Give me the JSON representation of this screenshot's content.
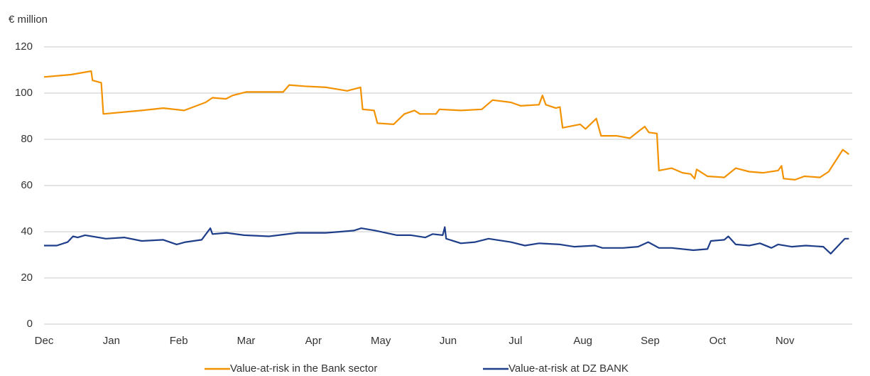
{
  "chart_data": {
    "type": "line",
    "y_label": "€ million",
    "xlim": [
      0,
      12
    ],
    "xticks": [
      {
        "value": 0,
        "label": "Dec"
      },
      {
        "value": 1,
        "label": "Jan"
      },
      {
        "value": 2,
        "label": "Feb"
      },
      {
        "value": 3,
        "label": "Mar"
      },
      {
        "value": 4,
        "label": "Apr"
      },
      {
        "value": 5,
        "label": "May"
      },
      {
        "value": 6,
        "label": "Jun"
      },
      {
        "value": 7,
        "label": "Jul"
      },
      {
        "value": 8,
        "label": "Aug"
      },
      {
        "value": 9,
        "label": "Sep"
      },
      {
        "value": 10,
        "label": "Oct"
      },
      {
        "value": 11,
        "label": "Nov"
      }
    ],
    "ylim": [
      0,
      120
    ],
    "yticks": [
      0,
      20,
      40,
      60,
      80,
      100,
      120
    ],
    "grid": true,
    "legend": "bottom",
    "series": [
      {
        "name": "Value-at-risk in the Bank sector",
        "color": "#f39200",
        "x": [
          0,
          0.4,
          0.7,
          0.72,
          0.85,
          0.88,
          1.45,
          1.77,
          2.08,
          2.4,
          2.5,
          2.7,
          2.8,
          3.0,
          3.55,
          3.64,
          3.87,
          4.19,
          4.5,
          4.7,
          4.73,
          4.9,
          4.95,
          5.19,
          5.35,
          5.5,
          5.58,
          5.82,
          5.87,
          6.19,
          6.5,
          6.66,
          6.93,
          7.08,
          7.35,
          7.4,
          7.45,
          7.6,
          7.66,
          7.7,
          7.96,
          8.04,
          8.2,
          8.27,
          8.5,
          8.7,
          8.85,
          8.92,
          8.98,
          9.1,
          9.13,
          9.32,
          9.48,
          9.6,
          9.66,
          9.69,
          9.85,
          10.1,
          10.27,
          10.47,
          10.68,
          10.9,
          10.95,
          10.98,
          11.15,
          11.29,
          11.52,
          11.65,
          11.86,
          11.95
        ],
        "values": [
          107,
          108,
          109.5,
          105.5,
          104.5,
          91,
          92.5,
          93.5,
          92.5,
          96,
          98,
          97.5,
          99,
          100.5,
          100.5,
          103.5,
          103,
          102.5,
          101,
          102.5,
          93,
          92.5,
          87,
          86.5,
          91,
          92.5,
          91,
          91,
          93,
          92.5,
          93,
          97,
          96,
          94.5,
          95,
          99,
          95,
          93.5,
          94,
          85,
          86.5,
          84.5,
          89,
          81.5,
          81.5,
          80.5,
          84,
          85.5,
          83,
          82.5,
          66.5,
          67.5,
          65.5,
          65,
          63,
          67,
          64,
          63.5,
          67.5,
          66,
          65.5,
          66.5,
          68.5,
          63,
          62.5,
          64,
          63.5,
          66,
          75.5,
          73.5
        ]
      },
      {
        "name": "Value-at-risk at DZ BANK",
        "color": "#1f3e8a",
        "x": [
          0,
          0.19,
          0.35,
          0.43,
          0.5,
          0.61,
          0.92,
          1.19,
          1.45,
          1.77,
          1.97,
          2.1,
          2.34,
          2.47,
          2.5,
          2.71,
          2.97,
          3.34,
          3.76,
          4.18,
          4.4,
          4.6,
          4.71,
          4.92,
          5.24,
          5.45,
          5.66,
          5.77,
          5.92,
          5.95,
          5.97,
          6.19,
          6.4,
          6.6,
          6.93,
          7.14,
          7.35,
          7.66,
          7.87,
          8.18,
          8.29,
          8.6,
          8.82,
          8.97,
          9.13,
          9.32,
          9.64,
          9.85,
          9.9,
          10.1,
          10.16,
          10.27,
          10.47,
          10.63,
          10.8,
          10.9,
          11.1,
          11.31,
          11.57,
          11.68,
          11.89,
          11.95
        ],
        "values": [
          34,
          34,
          35.5,
          38,
          37.5,
          38.5,
          37,
          37.5,
          36,
          36.5,
          34.5,
          35.5,
          36.5,
          41.5,
          39,
          39.5,
          38.5,
          38,
          39.5,
          39.5,
          40,
          40.5,
          41.5,
          40.5,
          38.5,
          38.5,
          37.5,
          39,
          38.5,
          42,
          37,
          35,
          35.5,
          37,
          35.5,
          34,
          35,
          34.5,
          33.5,
          34,
          33,
          33,
          33.5,
          35.5,
          33,
          33,
          32,
          32.5,
          36,
          36.5,
          38,
          34.5,
          34,
          35,
          33,
          34.5,
          33.5,
          34,
          33.5,
          30.5,
          37,
          37
        ]
      }
    ]
  }
}
